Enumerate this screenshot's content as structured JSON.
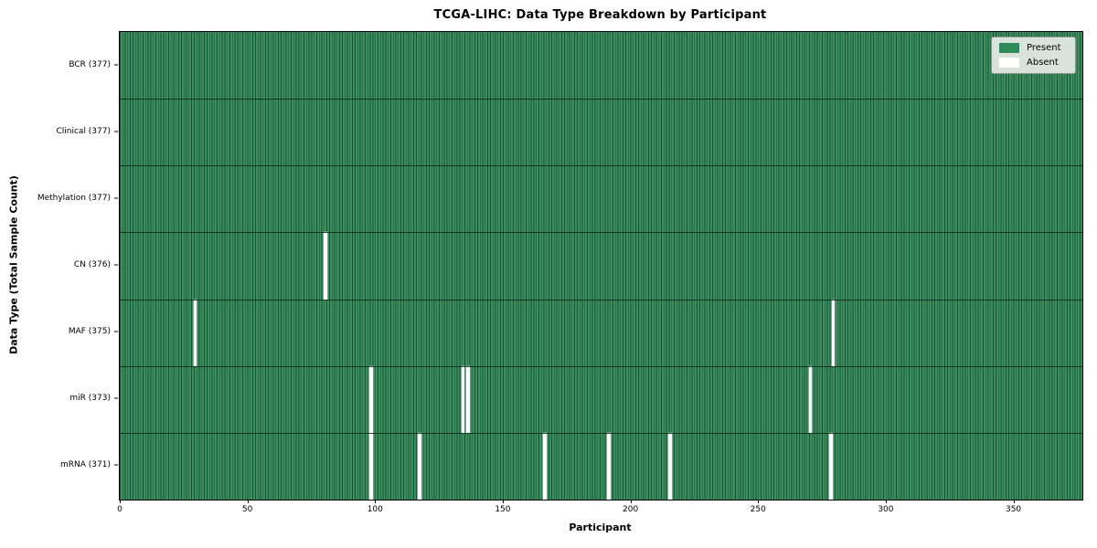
{
  "title": "TCGA-LIHC: Data Type Breakdown by Participant",
  "colors": {
    "present_fill": "#3a8f60",
    "bar_edge": "#1d5134",
    "absent": "#ffffff",
    "plot_border": "#000000",
    "legend_bg": "#e7ece7"
  },
  "chart_data": {
    "type": "heatmap",
    "subtype": "presence-absence-matrix",
    "title": "TCGA-LIHC: Data Type Breakdown by Participant",
    "xlabel": "Participant",
    "ylabel": "Data Type (Total Sample Count)",
    "x_axis": {
      "label": "Participant",
      "min": 0,
      "max": 377,
      "ticks": [
        0,
        50,
        100,
        150,
        200,
        250,
        300,
        350
      ]
    },
    "total_participants": 377,
    "grid": false,
    "legend_position": "upper right",
    "legend": [
      {
        "label": "Present",
        "color": "#2E8B57"
      },
      {
        "label": "Absent",
        "color": "#ffffff"
      }
    ],
    "rows": [
      {
        "label": "BCR (377)",
        "data_type": "BCR",
        "present_count": 377,
        "absent_participants": []
      },
      {
        "label": "Clinical (377)",
        "data_type": "Clinical",
        "present_count": 377,
        "absent_participants": []
      },
      {
        "label": "Methylation (377)",
        "data_type": "Methylation",
        "present_count": 377,
        "absent_participants": []
      },
      {
        "label": "CN (376)",
        "data_type": "CN",
        "present_count": 376,
        "absent_participants": [
          80
        ]
      },
      {
        "label": "MAF (375)",
        "data_type": "MAF",
        "present_count": 375,
        "absent_participants": [
          29,
          279
        ]
      },
      {
        "label": "miR (373)",
        "data_type": "miR",
        "present_count": 373,
        "absent_participants": [
          98,
          134,
          136,
          270
        ]
      },
      {
        "label": "mRNA (371)",
        "data_type": "mRNA",
        "present_count": 371,
        "absent_participants": [
          98,
          117,
          166,
          191,
          215,
          278
        ]
      }
    ]
  }
}
